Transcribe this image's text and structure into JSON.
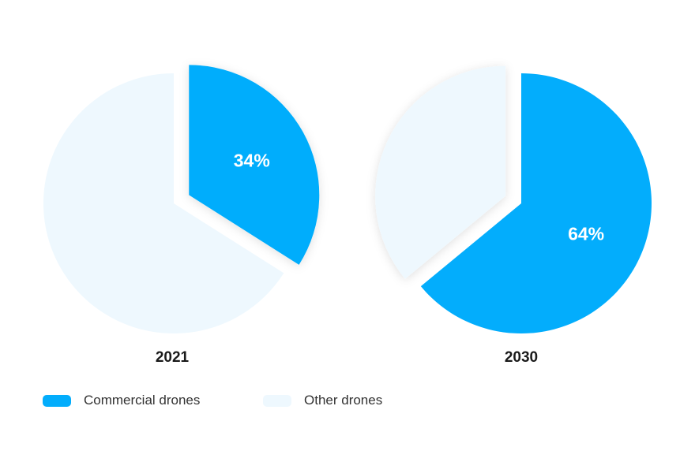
{
  "chart_data": [
    {
      "type": "pie",
      "title": "2021",
      "slices": [
        {
          "name": "Commercial drones",
          "value": 34,
          "label": "34%"
        },
        {
          "name": "Other drones",
          "value": 66,
          "label": ""
        }
      ]
    },
    {
      "type": "pie",
      "title": "2030",
      "slices": [
        {
          "name": "Commercial drones",
          "value": 64,
          "label": "64%"
        },
        {
          "name": "Other drones",
          "value": 36,
          "label": ""
        }
      ]
    }
  ],
  "legend": [
    {
      "label": "Commercial drones",
      "color": "#03adfc"
    },
    {
      "label": "Other drones",
      "color": "#eef8fe"
    }
  ],
  "colors": {
    "commercial": "#03adfc",
    "other": "#eef8fe"
  }
}
